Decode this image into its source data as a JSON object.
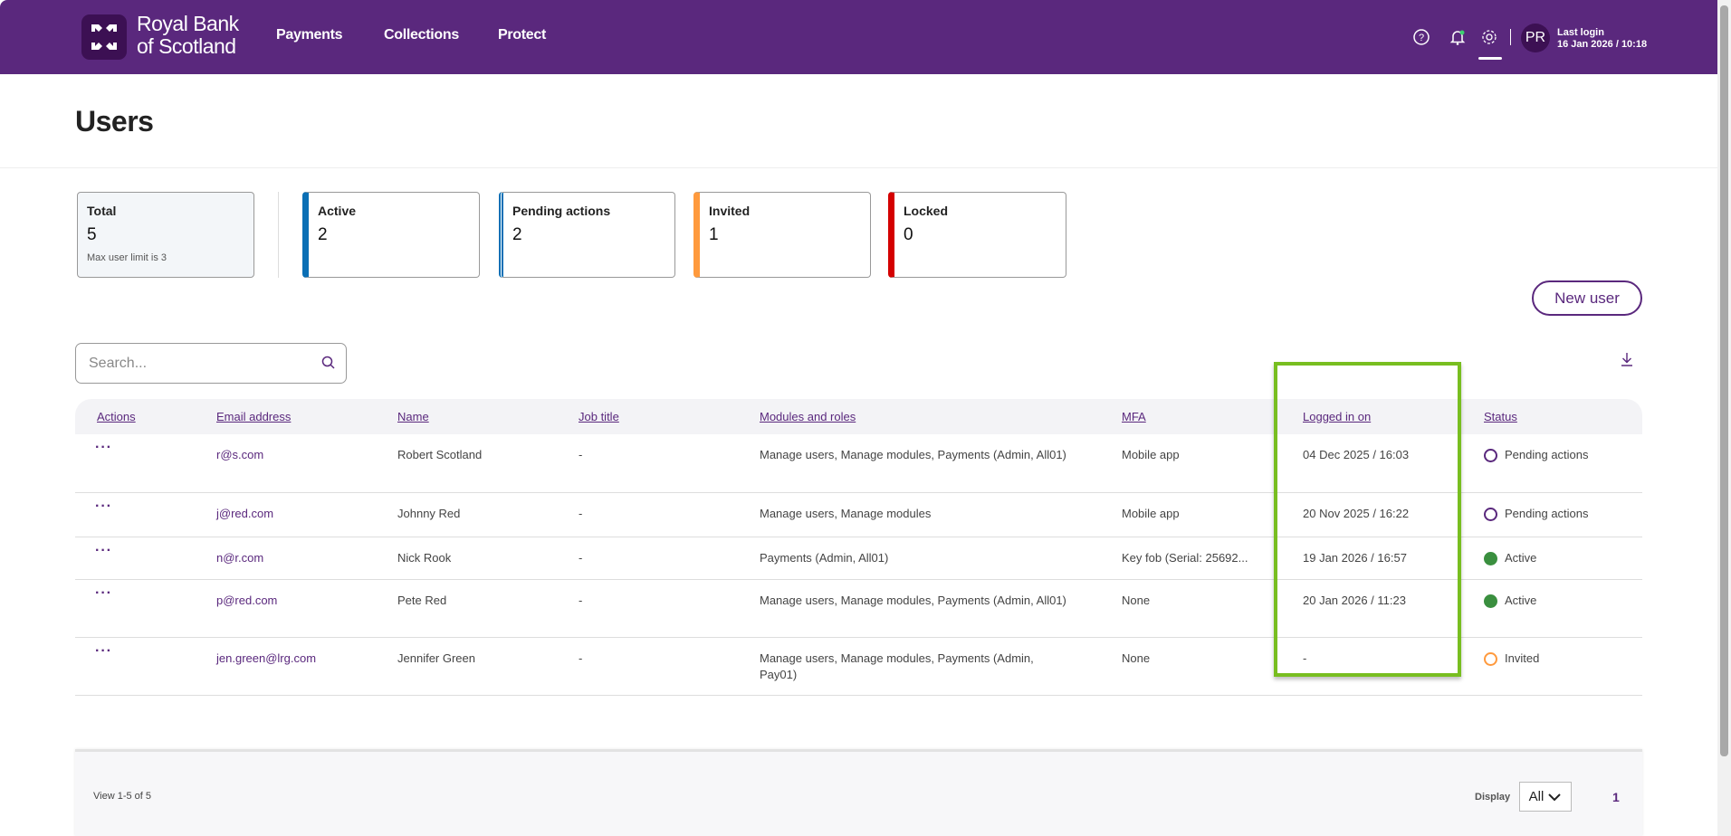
{
  "header": {
    "brand_line1": "Royal Bank",
    "brand_line2": "of Scotland",
    "nav": [
      "Payments",
      "Collections",
      "Protect"
    ],
    "avatar_initials": "PR",
    "last_login_label": "Last login",
    "last_login_value": "16 Jan 2026 / 10:18"
  },
  "page": {
    "title": "Users"
  },
  "summary": [
    {
      "label": "Total",
      "value": "5",
      "note": "Max user limit is 3"
    },
    {
      "label": "Active",
      "value": "2",
      "color": "#0a6fb5"
    },
    {
      "label": "Pending actions",
      "value": "2",
      "color": "#0a6fb5"
    },
    {
      "label": "Invited",
      "value": "1",
      "color": "#ff9a3d"
    },
    {
      "label": "Locked",
      "value": "0",
      "color": "#d40000"
    }
  ],
  "new_user_label": "New user",
  "search": {
    "placeholder": "Search..."
  },
  "table": {
    "columns": [
      "Actions",
      "Email address",
      "Name",
      "Job title",
      "Modules and roles",
      "MFA",
      "Logged in on",
      "Status"
    ],
    "rows": [
      {
        "actions": "···",
        "email": "r@s.com",
        "name": "Robert Scotland",
        "job": "-",
        "modules": "Manage users, Manage modules, Payments (Admin, All01)",
        "mfa": "Mobile app",
        "logged": "04 Dec 2025 / 16:03",
        "status": "Pending actions"
      },
      {
        "actions": "···",
        "email": "j@red.com",
        "name": "Johnny Red",
        "job": "-",
        "modules": "Manage users, Manage modules",
        "mfa": "Mobile app",
        "logged": "20 Nov 2025 / 16:22",
        "status": "Pending actions"
      },
      {
        "actions": "···",
        "email": "n@r.com",
        "name": "Nick Rook",
        "job": "-",
        "modules": "Payments (Admin, All01)",
        "mfa": "Key fob (Serial: 25692...",
        "logged": "19 Jan 2026 / 16:57",
        "status": "Active"
      },
      {
        "actions": "···",
        "email": "p@red.com",
        "name": "Pete Red",
        "job": "-",
        "modules": "Manage users, Manage modules, Payments (Admin, All01)",
        "mfa": "None",
        "logged": "20 Jan 2026 / 11:23",
        "status": "Active"
      },
      {
        "actions": "···",
        "email": "jen.green@lrg.com",
        "name": "Jennifer Green",
        "job": "-",
        "modules": "Manage users, Manage modules, Payments (Admin, Pay01)",
        "mfa": "None",
        "logged": "-",
        "status": "Invited"
      }
    ]
  },
  "footer": {
    "view_text": "View 1-5 of 5",
    "display_label": "Display",
    "display_value": "All",
    "page": "1"
  }
}
